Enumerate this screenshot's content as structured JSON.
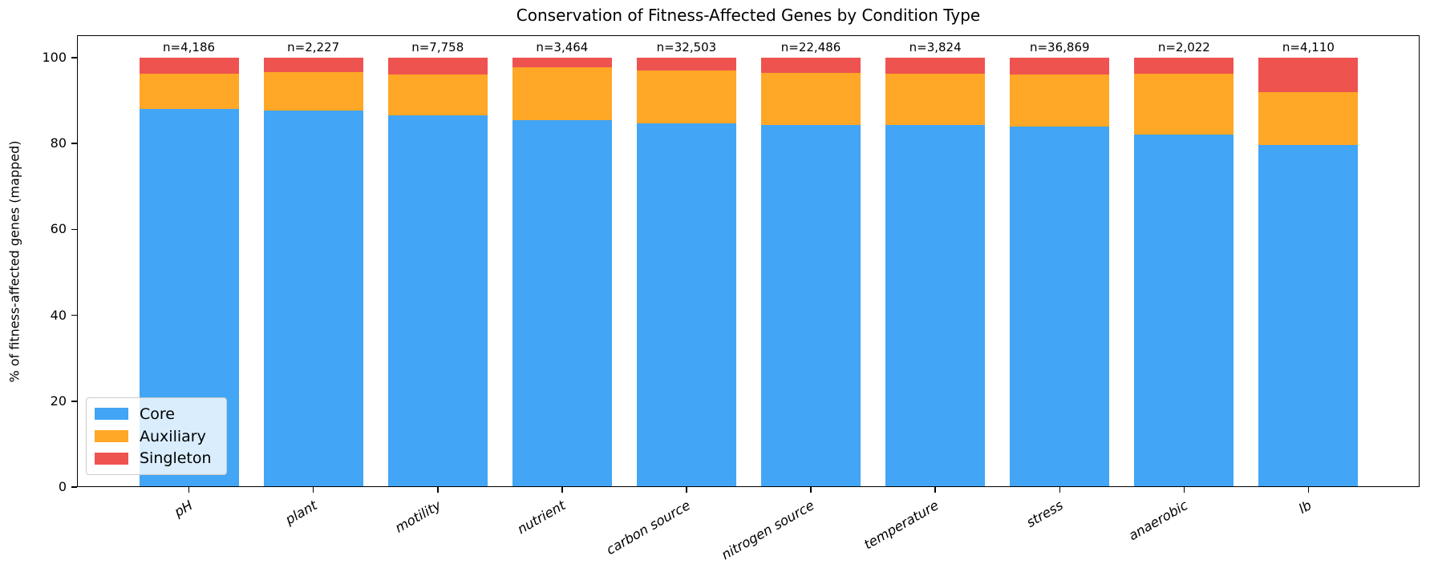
{
  "chart_data": {
    "type": "bar",
    "stacked": true,
    "title": "Conservation of Fitness-Affected Genes by Condition Type",
    "ylabel": "% of fitness-affected genes (mapped)",
    "xlabel": "",
    "categories": [
      "pH",
      "plant",
      "motility",
      "nutrient",
      "carbon source",
      "nitrogen source",
      "temperature",
      "stress",
      "anaerobic",
      "lb"
    ],
    "series": [
      {
        "name": "Core",
        "color": "#42A5F5",
        "values": [
          88.1,
          87.7,
          86.5,
          85.5,
          84.7,
          84.3,
          84.3,
          84.0,
          82.0,
          79.7
        ]
      },
      {
        "name": "Auxiliary",
        "color": "#FFA726",
        "values": [
          8.1,
          9.0,
          9.6,
          12.3,
          12.2,
          12.1,
          11.9,
          12.0,
          14.2,
          12.3
        ]
      },
      {
        "name": "Singleton",
        "color": "#EF5350",
        "values": [
          3.8,
          3.3,
          3.9,
          2.2,
          3.1,
          3.6,
          3.8,
          4.0,
          3.8,
          8.0
        ]
      }
    ],
    "bar_labels": [
      "n=4,186",
      "n=2,227",
      "n=7,758",
      "n=3,464",
      "n=32,503",
      "n=22,486",
      "n=3,824",
      "n=36,869",
      "n=2,022",
      "n=4,110"
    ],
    "yticks": [
      0,
      20,
      40,
      60,
      80,
      100
    ],
    "ylim": [
      0,
      105.2
    ],
    "grid": false,
    "legend": {
      "position": "lower left",
      "entries": [
        "Core",
        "Auxiliary",
        "Singleton"
      ]
    },
    "axis_color": "#000000",
    "background_color": "#ffffff"
  }
}
